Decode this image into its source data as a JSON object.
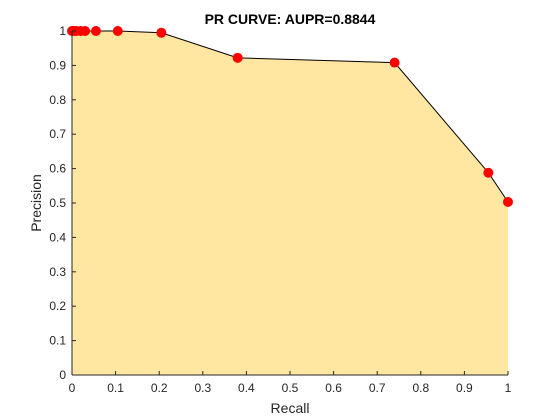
{
  "colors": {
    "area_fill": "#ffe6a1",
    "line": "#000000",
    "marker": "#ff0000",
    "axis": "#262626",
    "background": "#ffffff"
  },
  "chart_data": {
    "type": "area",
    "title": "PR CURVE: AUPR=0.8844",
    "xlabel": "Recall",
    "ylabel": "Precision",
    "xlim": [
      0,
      1
    ],
    "ylim": [
      0,
      1
    ],
    "x_ticks": [
      0,
      0.1,
      0.2,
      0.3,
      0.4,
      0.5,
      0.6,
      0.7,
      0.8,
      0.9,
      1
    ],
    "y_ticks": [
      0,
      0.1,
      0.2,
      0.3,
      0.4,
      0.5,
      0.6,
      0.7,
      0.8,
      0.9,
      1
    ],
    "x_tick_labels": [
      "0",
      "0.1",
      "0.2",
      "0.3",
      "0.4",
      "0.5",
      "0.6",
      "0.7",
      "0.8",
      "0.9",
      "1"
    ],
    "y_tick_labels": [
      "0",
      "0.1",
      "0.2",
      "0.3",
      "0.4",
      "0.5",
      "0.6",
      "0.7",
      "0.8",
      "0.9",
      "1"
    ],
    "grid": false,
    "series": [
      {
        "x": [
          0,
          0.005,
          0.01,
          0.02,
          0.03,
          0.055,
          0.105,
          0.205,
          0.38,
          0.74,
          0.955,
          1
        ],
        "y": [
          1,
          1,
          1,
          1,
          1,
          1,
          1,
          0.995,
          0.922,
          0.908,
          0.588,
          0.503
        ]
      }
    ]
  }
}
